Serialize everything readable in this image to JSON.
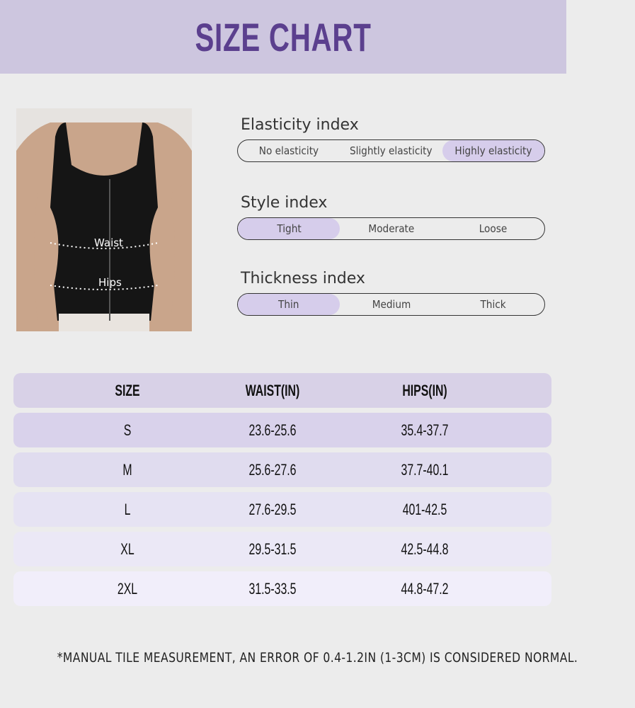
{
  "title": "SIZE CHART",
  "photo": {
    "waist_label": "Waist",
    "hips_label": "Hips"
  },
  "indices": [
    {
      "label": "Elasticity index",
      "options": [
        "No elasticity",
        "Slightly elasticity",
        "Highly elasticity"
      ],
      "selected": 2
    },
    {
      "label": "Style index",
      "options": [
        "Tight",
        "Moderate",
        "Loose"
      ],
      "selected": 0
    },
    {
      "label": "Thickness index",
      "options": [
        "Thin",
        "Medium",
        "Thick"
      ],
      "selected": 0
    }
  ],
  "table": {
    "headers": [
      "SIZE",
      "WAIST(IN)",
      "HIPS(IN)"
    ],
    "rows": [
      [
        "S",
        "23.6-25.6",
        "35.4-37.7"
      ],
      [
        "M",
        "25.6-27.6",
        "37.7-40.1"
      ],
      [
        "L",
        "27.6-29.5",
        "401-42.5"
      ],
      [
        "XL",
        "29.5-31.5",
        "42.5-44.8"
      ],
      [
        "2XL",
        "31.5-33.5",
        "44.8-47.2"
      ]
    ]
  },
  "note": "*MANUAL TILE MEASUREMENT, AN ERROR OF 0.4-1.2IN (1-3CM) IS CONSIDERED NORMAL.",
  "colors": {
    "banner": "#cdc6df",
    "title": "#5b3f8e",
    "accent": "#d6cdeb",
    "background": "#ececec"
  }
}
